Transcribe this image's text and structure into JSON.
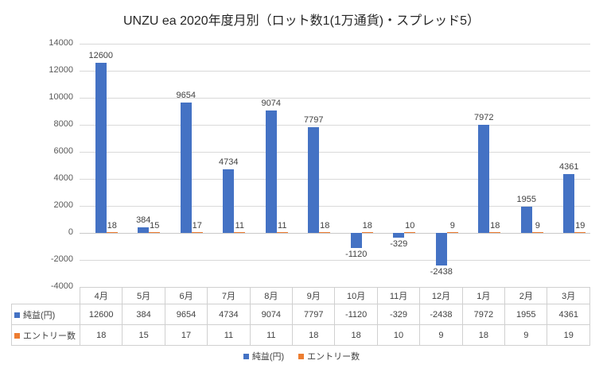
{
  "title": "UNZU ea 2020年度月別（ロット数1(1万通貨)・スプレッド5）",
  "colors": {
    "profit_series": "#4472C4",
    "entry_series": "#ED7D31",
    "gridline": "#D9D9D9",
    "axis_label": "#595959",
    "table_border": "#D0D0D0"
  },
  "chart_data": {
    "type": "bar",
    "title": "UNZU ea 2020年度月別（ロット数1(1万通貨)・スプレッド5）",
    "categories": [
      "4月",
      "5月",
      "6月",
      "7月",
      "8月",
      "9月",
      "10月",
      "11月",
      "12月",
      "1月",
      "2月",
      "3月"
    ],
    "series": [
      {
        "name": "純益(円)",
        "color": "#4472C4",
        "values": [
          12600,
          384,
          9654,
          4734,
          9074,
          7797,
          -1120,
          -329,
          -2438,
          7972,
          1955,
          4361
        ]
      },
      {
        "name": "エントリー数",
        "color": "#ED7D31",
        "values": [
          18,
          15,
          17,
          11,
          11,
          18,
          18,
          10,
          9,
          18,
          9,
          19
        ]
      }
    ],
    "xlabel": "",
    "ylabel": "",
    "ylim": [
      -4000,
      14000
    ],
    "yticks": [
      14000,
      12000,
      10000,
      8000,
      6000,
      4000,
      2000,
      0,
      -2000,
      -4000
    ],
    "grid": true,
    "data_labels": true,
    "data_table": true,
    "legend_position": "bottom"
  }
}
